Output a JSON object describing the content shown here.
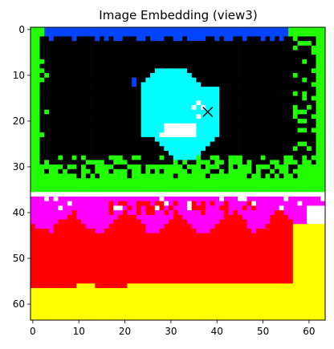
{
  "chart_data": {
    "type": "heatmap",
    "title": "Image Embedding (view3)",
    "xlabel": "",
    "ylabel": "",
    "image_shape": [
      64,
      64
    ],
    "xlim": [
      -0.5,
      63.5
    ],
    "ylim": [
      63.5,
      -0.5
    ],
    "x_ticks": [
      0,
      10,
      20,
      30,
      40,
      50,
      60
    ],
    "y_ticks": [
      0,
      10,
      20,
      30,
      40,
      50,
      60
    ],
    "marker": {
      "shape": "x",
      "x": 38,
      "y": 18,
      "color": "#000000"
    },
    "colors": {
      "background": "#000000",
      "border_green": "#22ff00",
      "top_blue": "#0044ff",
      "shape_cyan": "#00ffff",
      "magenta": "#ff00ff",
      "red": "#ff0000",
      "yellow": "#ffff00",
      "white": "#ffffff"
    },
    "regions": [
      {
        "label": "background",
        "color": "black",
        "x": [
          0,
          63
        ],
        "y": [
          0,
          35
        ]
      },
      {
        "label": "green-border",
        "color": "green",
        "rows_top": [
          0,
          2
        ],
        "cols_left": [
          0,
          1
        ],
        "cols_right": [
          58,
          63
        ],
        "rows_bottom": [
          31,
          35
        ]
      },
      {
        "label": "cyan-shape",
        "color": "cyan",
        "x": [
          22,
          41
        ],
        "y": [
          9,
          28
        ]
      },
      {
        "label": "magenta-band",
        "color": "magenta",
        "x": [
          0,
          63
        ],
        "y": [
          36,
          44
        ]
      },
      {
        "label": "red-band",
        "color": "red",
        "x": [
          0,
          57
        ],
        "y": [
          40,
          57
        ]
      },
      {
        "label": "yellow-band",
        "color": "yellow",
        "x": [
          0,
          63
        ],
        "y": [
          55,
          63
        ]
      }
    ]
  }
}
